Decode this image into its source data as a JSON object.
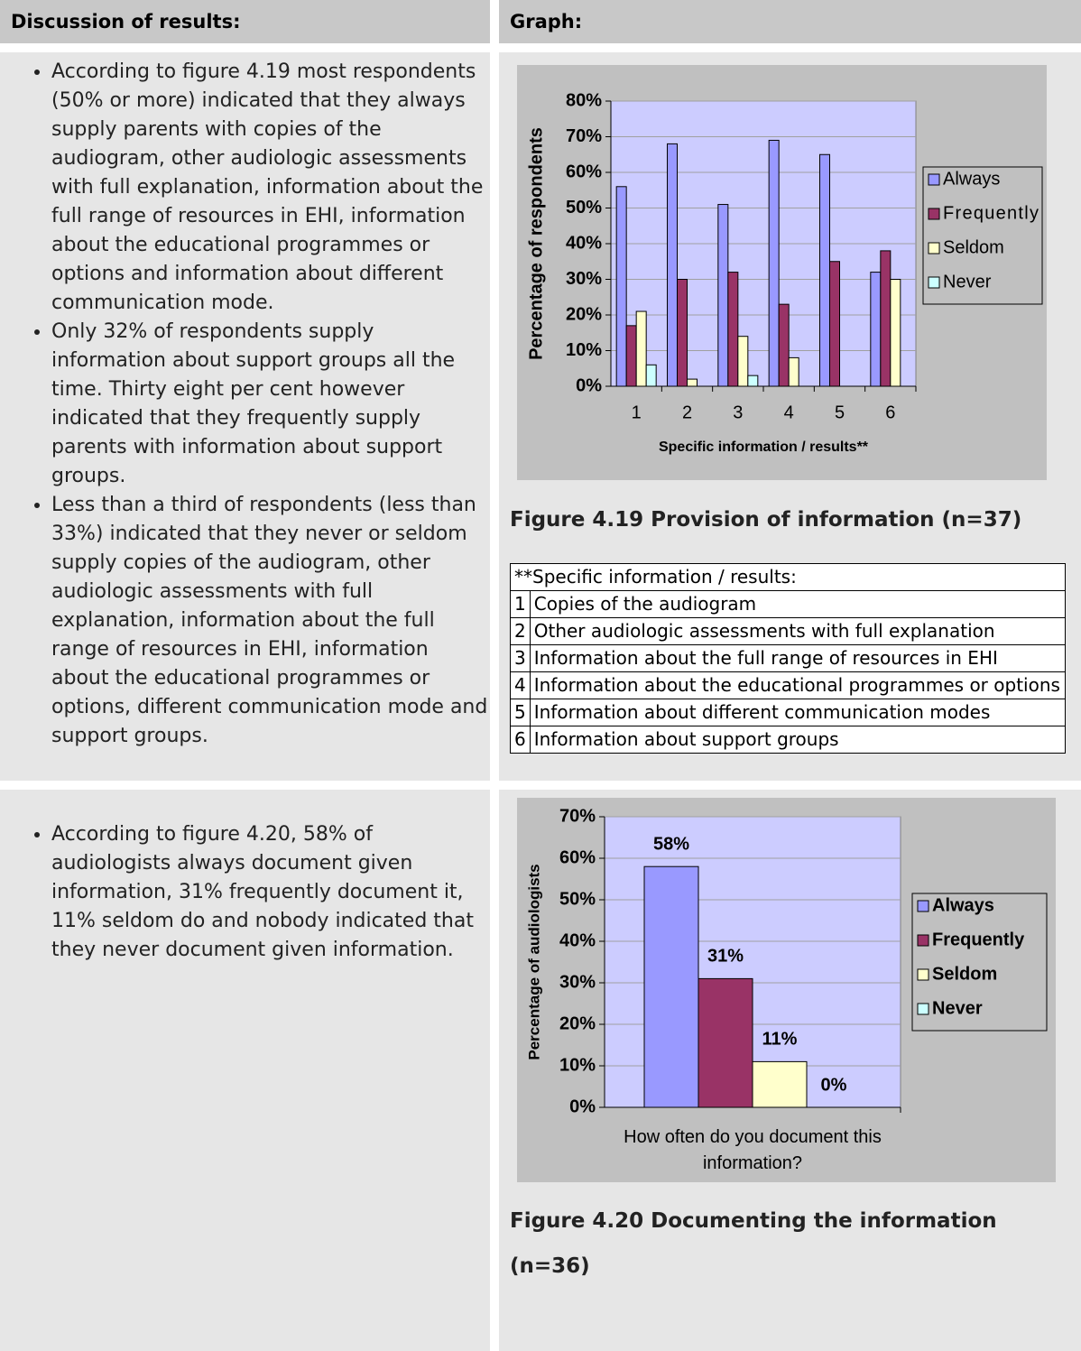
{
  "header": {
    "left": "Discussion of results:",
    "right": "Graph:"
  },
  "discussion": [
    [
      "According to figure 4.19 most respondents (50% or more) indicated that they  always supply parents with copies of the audiogram, other audiologic assessments with full explanation, information about the full range of resources in EHI, information about the educational programmes or options and information about different communication mode.",
      "Only 32% of respondents supply information about support groups all the time.  Thirty eight per cent however indicated that they frequently supply parents with information about support groups.",
      "Less than a third of respondents (less than 33%) indicated that they never or seldom supply copies of the audiogram, other audiologic assessments with full explanation, information about the full range of resources in EHI, information about the educational programmes or options, different communication mode and support groups."
    ],
    [
      "According to figure 4.20, 58% of audiologists always document given information, 31% frequently document it, 11% seldom do and nobody indicated that they never document given information."
    ]
  ],
  "captions": [
    "Figure 4.19  Provision of information (n=37)",
    "Figure 4.20  Documenting the information (n=36)"
  ],
  "table": {
    "header": "**Specific information / results:",
    "rows": [
      [
        "1",
        "Copies of the audiogram"
      ],
      [
        "2",
        "Other audiologic assessments with full explanation"
      ],
      [
        "3",
        "Information about the full range of resources in EHI"
      ],
      [
        "4",
        "Information about the educational programmes or options"
      ],
      [
        "5",
        "Information about different communication modes"
      ],
      [
        "6",
        "Information about support groups"
      ]
    ]
  },
  "chart_data": [
    {
      "type": "bar",
      "y_label": "Percentage of respondents",
      "x_label": "Specific information / results**",
      "categories": [
        "1",
        "2",
        "3",
        "4",
        "5",
        "6"
      ],
      "series": [
        {
          "name": "Always",
          "color": "#9999ff",
          "values": [
            56,
            68,
            51,
            69,
            65,
            32
          ]
        },
        {
          "name": "Frequently",
          "color": "#993366",
          "values": [
            17,
            30,
            32,
            23,
            35,
            38
          ]
        },
        {
          "name": "Seldom",
          "color": "#ffffcc",
          "values": [
            21,
            2,
            14,
            8,
            0,
            30
          ]
        },
        {
          "name": "Never",
          "color": "#ccffff",
          "values": [
            6,
            0,
            3,
            0,
            0,
            0
          ]
        }
      ],
      "ylim": [
        0,
        80
      ],
      "yticks": [
        {
          "value": 0,
          "label": "0%"
        },
        {
          "value": 10,
          "label": "10%"
        },
        {
          "value": 20,
          "label": "20%"
        },
        {
          "value": 30,
          "label": "30%"
        },
        {
          "value": 40,
          "label": "40%"
        },
        {
          "value": 50,
          "label": "50%"
        },
        {
          "value": 60,
          "label": "60%"
        },
        {
          "value": 70,
          "label": "70%"
        },
        {
          "value": 80,
          "label": "80%"
        }
      ],
      "grid": true,
      "legend": "right"
    },
    {
      "type": "bar",
      "y_label": "Percentage of audiologists",
      "categories": [
        "How often do you document this information?"
      ],
      "series": [
        {
          "name": "Always",
          "color": "#9999ff",
          "values": [
            58
          ],
          "value_labels": [
            "58%"
          ]
        },
        {
          "name": "Frequently",
          "color": "#993366",
          "values": [
            31
          ],
          "value_labels": [
            "31%"
          ]
        },
        {
          "name": "Seldom",
          "color": "#ffffcc",
          "values": [
            11
          ],
          "value_labels": [
            "11%"
          ]
        },
        {
          "name": "Never",
          "color": "#ccffff",
          "values": [
            0
          ],
          "value_labels": [
            "0%"
          ]
        }
      ],
      "ylim": [
        0,
        70
      ],
      "yticks": [
        {
          "value": 0,
          "label": "0%"
        },
        {
          "value": 10,
          "label": "10%"
        },
        {
          "value": 20,
          "label": "20%"
        },
        {
          "value": 30,
          "label": "30%"
        },
        {
          "value": 40,
          "label": "40%"
        },
        {
          "value": 50,
          "label": "50%"
        },
        {
          "value": 60,
          "label": "60%"
        },
        {
          "value": 70,
          "label": "70%"
        }
      ],
      "grid": true,
      "legend": "right"
    }
  ]
}
